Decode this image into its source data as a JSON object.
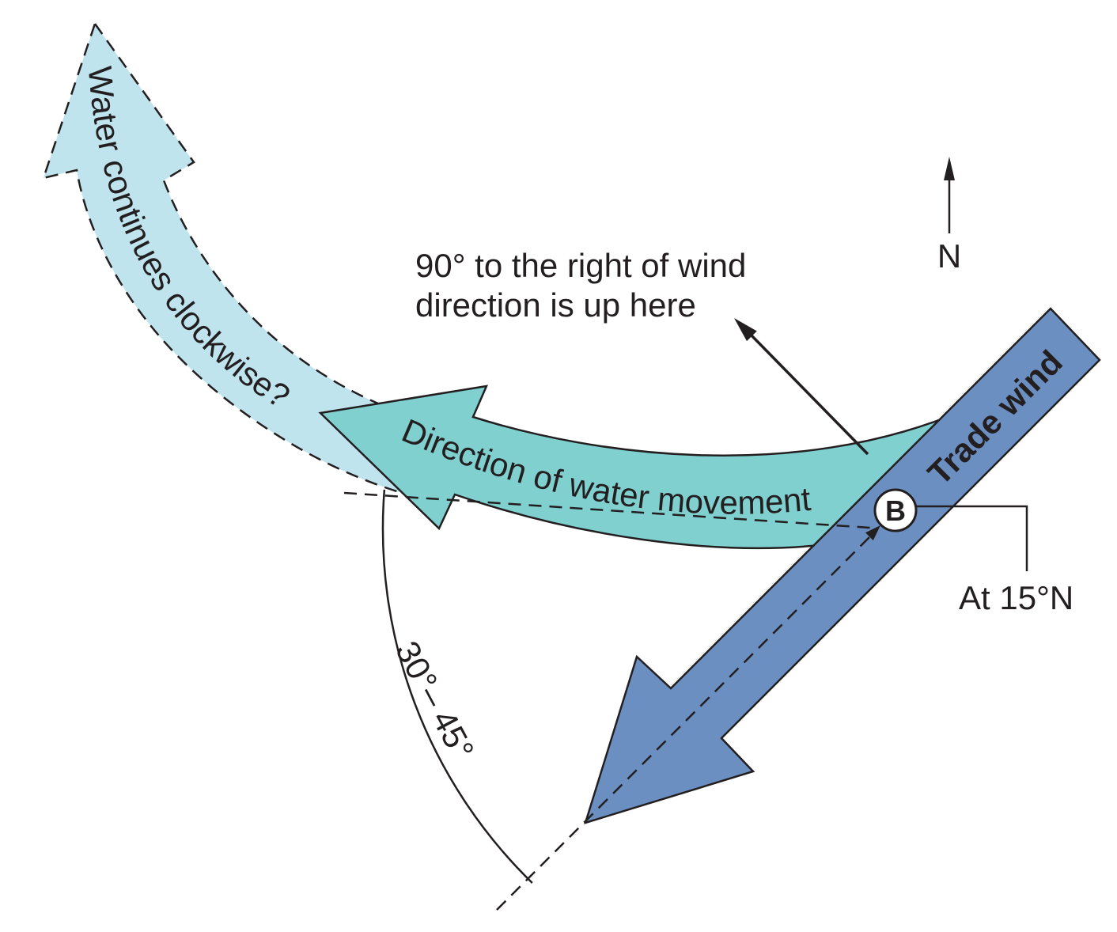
{
  "labels": {
    "circulation_question": "Water continues clockwise?",
    "water_movement": "Direction of water movement",
    "trade_wind": "Trade wind",
    "north": "N",
    "right_angle_line1": "90° to the right of wind",
    "right_angle_line2": "direction is up here",
    "point": "B",
    "latitude": "At 15°N",
    "deflection_angle": "30°– 45°"
  },
  "colors": {
    "circulation_question": "#bfe4ee",
    "water_movement": "#80d0d0",
    "trade_wind": "#6b8fc1",
    "trade_wind_text": "#ffffff",
    "point_fill": "#ffffff"
  }
}
